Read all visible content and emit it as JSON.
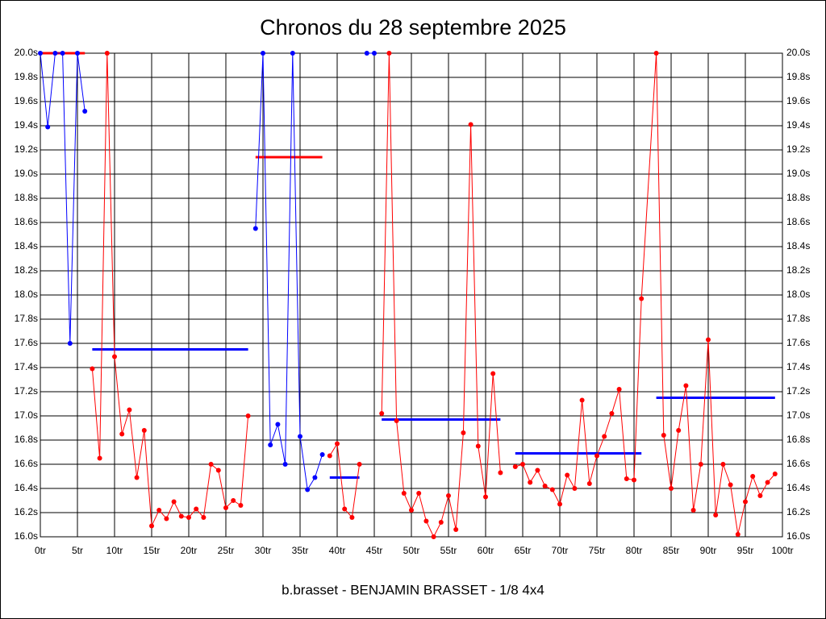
{
  "chart_data": {
    "type": "line",
    "title": "Chronos du 28 septembre 2025",
    "caption": "b.brasset - BENJAMIN BRASSET - 1/8 4x4",
    "xlim": [
      0,
      100
    ],
    "ylim": [
      16,
      20
    ],
    "grid": true,
    "xticks": [
      {
        "value": 0,
        "label": "0tr"
      },
      {
        "value": 5,
        "label": "5tr"
      },
      {
        "value": 10,
        "label": "10tr"
      },
      {
        "value": 15,
        "label": "15tr"
      },
      {
        "value": 20,
        "label": "20tr"
      },
      {
        "value": 25,
        "label": "25tr"
      },
      {
        "value": 30,
        "label": "30tr"
      },
      {
        "value": 35,
        "label": "35tr"
      },
      {
        "value": 40,
        "label": "40tr"
      },
      {
        "value": 45,
        "label": "45tr"
      },
      {
        "value": 50,
        "label": "50tr"
      },
      {
        "value": 55,
        "label": "55tr"
      },
      {
        "value": 60,
        "label": "60tr"
      },
      {
        "value": 65,
        "label": "65tr"
      },
      {
        "value": 70,
        "label": "70tr"
      },
      {
        "value": 75,
        "label": "75tr"
      },
      {
        "value": 80,
        "label": "80tr"
      },
      {
        "value": 85,
        "label": "85tr"
      },
      {
        "value": 90,
        "label": "90tr"
      },
      {
        "value": 95,
        "label": "95tr"
      },
      {
        "value": 100,
        "label": "100tr"
      }
    ],
    "yticks": [
      {
        "value": 16.0,
        "label": "16.0s"
      },
      {
        "value": 16.2,
        "label": "16.2s"
      },
      {
        "value": 16.4,
        "label": "16.4s"
      },
      {
        "value": 16.6,
        "label": "16.6s"
      },
      {
        "value": 16.8,
        "label": "16.8s"
      },
      {
        "value": 17.0,
        "label": "17.0s"
      },
      {
        "value": 17.2,
        "label": "17.2s"
      },
      {
        "value": 17.4,
        "label": "17.4s"
      },
      {
        "value": 17.6,
        "label": "17.6s"
      },
      {
        "value": 17.8,
        "label": "17.8s"
      },
      {
        "value": 18.0,
        "label": "18.0s"
      },
      {
        "value": 18.2,
        "label": "18.2s"
      },
      {
        "value": 18.4,
        "label": "18.4s"
      },
      {
        "value": 18.6,
        "label": "18.6s"
      },
      {
        "value": 18.8,
        "label": "18.8s"
      },
      {
        "value": 19.0,
        "label": "19.0s"
      },
      {
        "value": 19.2,
        "label": "19.2s"
      },
      {
        "value": 19.4,
        "label": "19.4s"
      },
      {
        "value": 19.6,
        "label": "19.6s"
      },
      {
        "value": 19.8,
        "label": "19.8s"
      },
      {
        "value": 20.0,
        "label": "20.0s"
      }
    ],
    "series": [
      {
        "color": "#0000ff",
        "x": [
          0,
          1,
          2,
          3,
          4,
          5,
          6,
          null,
          29,
          30,
          31,
          32,
          33,
          34,
          35,
          36,
          37,
          38,
          null,
          44,
          45
        ],
        "values": [
          20,
          19.39,
          20,
          20,
          17.6,
          20,
          19.52,
          null,
          18.55,
          20,
          16.76,
          16.93,
          16.6,
          20,
          16.83,
          16.39,
          16.49,
          16.68,
          null,
          20,
          20
        ]
      },
      {
        "color": "#ff0000",
        "x": [
          7,
          8,
          9,
          10,
          11,
          12,
          13,
          14,
          15,
          16,
          17,
          18,
          19,
          20,
          21,
          22,
          23,
          24,
          25,
          26,
          27,
          28,
          null,
          39,
          40,
          41,
          42,
          43,
          null,
          46,
          47,
          48,
          49,
          50,
          51,
          52,
          53,
          54,
          55,
          56,
          57,
          58,
          59,
          60,
          61,
          62,
          null,
          64,
          65,
          66,
          67,
          68,
          69,
          70,
          71,
          72,
          73,
          74,
          75,
          76,
          77,
          78,
          79,
          80,
          81,
          83,
          84,
          85,
          86,
          87,
          88,
          89,
          90,
          91,
          92,
          93,
          94,
          95,
          96,
          97,
          98,
          99
        ],
        "values": [
          17.39,
          16.65,
          20,
          17.49,
          16.85,
          17.05,
          16.49,
          16.88,
          16.09,
          16.22,
          16.15,
          16.29,
          16.17,
          16.16,
          16.23,
          16.16,
          16.6,
          16.55,
          16.24,
          16.3,
          16.26,
          17.0,
          null,
          16.67,
          16.77,
          16.23,
          16.16,
          16.6,
          null,
          17.02,
          20,
          16.96,
          16.36,
          16.22,
          16.36,
          16.13,
          16.0,
          16.12,
          16.34,
          16.06,
          16.86,
          19.41,
          16.75,
          16.33,
          17.35,
          16.53,
          null,
          16.58,
          16.6,
          16.45,
          16.55,
          16.42,
          16.39,
          16.27,
          16.51,
          16.4,
          17.13,
          16.44,
          16.67,
          16.83,
          17.02,
          17.22,
          16.48,
          16.47,
          17.97,
          20,
          16.84,
          16.4,
          16.88,
          17.25,
          16.22,
          16.6,
          17.63,
          16.18,
          16.6,
          16.43,
          16.02,
          16.29,
          16.5,
          16.34,
          16.45,
          16.52
        ]
      }
    ],
    "averages": [
      {
        "x": [
          0,
          6
        ],
        "value": 20,
        "color": "#ff0000"
      },
      {
        "x": [
          7,
          28
        ],
        "value": 17.55,
        "color": "#0000ff"
      },
      {
        "x": [
          29,
          38
        ],
        "value": 19.14,
        "color": "#ff0000"
      },
      {
        "x": [
          39,
          43
        ],
        "value": 16.49,
        "color": "#0000ff"
      },
      {
        "x": [
          46,
          62
        ],
        "value": 16.97,
        "color": "#0000ff"
      },
      {
        "x": [
          64,
          81
        ],
        "value": 16.69,
        "color": "#0000ff"
      },
      {
        "x": [
          83,
          99
        ],
        "value": 17.15,
        "color": "#0000ff"
      }
    ]
  }
}
